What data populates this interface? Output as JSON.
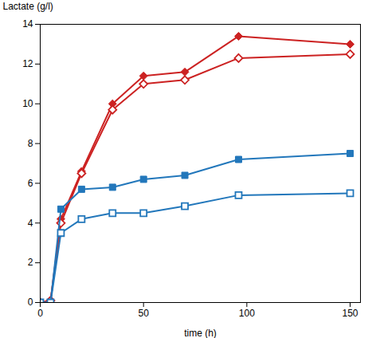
{
  "chart_data": {
    "type": "line",
    "xlabel": "time (h)",
    "ylabel": "Lactate (g/l)",
    "xlim": [
      0,
      155
    ],
    "ylim": [
      0,
      14
    ],
    "xticks": [
      0,
      50,
      100,
      150
    ],
    "yticks": [
      0,
      2,
      4,
      6,
      8,
      10,
      12,
      14
    ],
    "grid": false,
    "x": [
      0,
      5,
      10,
      20,
      35,
      50,
      70,
      96,
      150
    ],
    "series": [
      {
        "color": "#cc2222",
        "marker": "diamond",
        "values": [
          0,
          0.1,
          4.2,
          6.6,
          10.0,
          11.4,
          11.6,
          13.4,
          13.0
        ]
      },
      {
        "color": "#cc2222",
        "marker": "diamond-open",
        "values": [
          0,
          0.1,
          4.0,
          6.5,
          9.7,
          11.0,
          11.2,
          12.3,
          12.5
        ]
      },
      {
        "color": "#2277bb",
        "marker": "square",
        "values": [
          0,
          0.0,
          4.7,
          5.7,
          5.8,
          6.2,
          6.4,
          7.2,
          7.5
        ]
      },
      {
        "color": "#2277bb",
        "marker": "square-open",
        "values": [
          0,
          0.0,
          3.5,
          4.2,
          4.5,
          4.5,
          4.85,
          5.4,
          5.5
        ]
      }
    ]
  }
}
